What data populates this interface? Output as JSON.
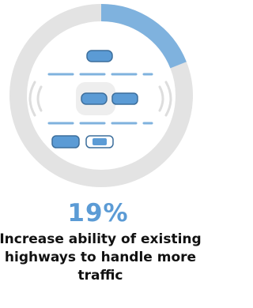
{
  "chart_data": {
    "type": "donut",
    "values": [
      19
    ],
    "value_labels": [
      "19%"
    ],
    "color": "#7fb2de",
    "track_color": "#e3e3e3",
    "caption": "Increase ability of existing highways to handle more traffic"
  }
}
